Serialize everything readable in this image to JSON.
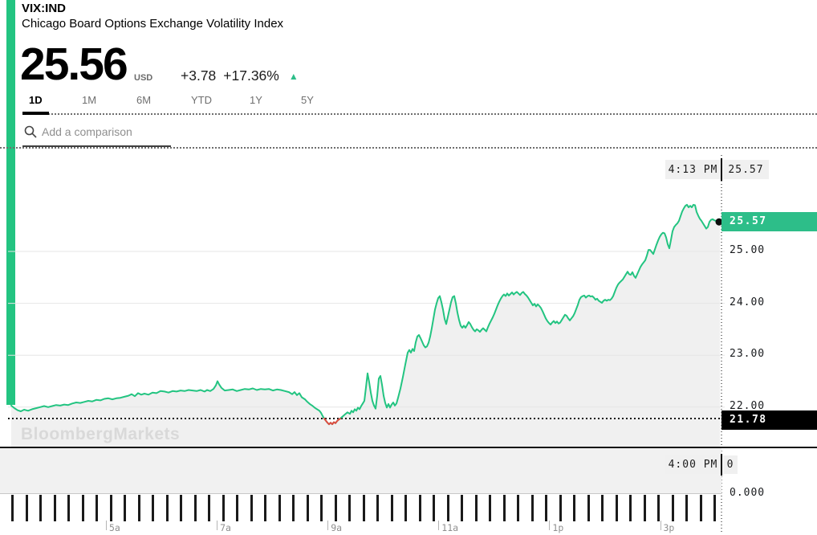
{
  "header": {
    "symbol": "VIX:IND",
    "name": "Chicago Board Options Exchange Volatility Index",
    "price": "25.56",
    "currency": "USD",
    "change_abs": "+3.78",
    "change_pct": "+17.36%",
    "direction_arrow": "▲"
  },
  "tabs": {
    "items": [
      "1D",
      "1M",
      "6M",
      "YTD",
      "1Y",
      "5Y"
    ],
    "active": "1D"
  },
  "comparison": {
    "placeholder": "Add a comparison"
  },
  "icons": {
    "comparison_search": "magnifying-glass"
  },
  "watermark": "BloombergMarkets",
  "colors": {
    "line_green": "#23c481",
    "badge_green": "#2dbe89",
    "below_close_red": "#df4b41",
    "prev_close_badge": "#000000",
    "grid": "#e6e6e6",
    "area_fill": "#f0f0f0"
  },
  "chart_data": {
    "type": "area",
    "title": "VIX:IND 1D intraday price",
    "x_ticks": [
      "5a",
      "7a",
      "9a",
      "11a",
      "1p",
      "3p"
    ],
    "y_ticks": [
      "25.00",
      "24.00",
      "23.00",
      "22.00"
    ],
    "y_tick_values": [
      25,
      24,
      23,
      22
    ],
    "ylim": [
      21.55,
      26.15
    ],
    "volume_axis_label": "0.000",
    "prev_close": 21.78,
    "prev_close_label": "21.78",
    "last_value": 25.57,
    "last_price_label": "25.57",
    "crosshair_top": {
      "time": "4:13 PM",
      "value": "25.57"
    },
    "crosshair_bottom": {
      "time": "4:00 PM",
      "value": "0"
    },
    "time_tick_count": 51,
    "legend": "none",
    "series": [
      [
        14,
        22.03
      ],
      [
        18,
        21.98
      ],
      [
        22,
        21.94
      ],
      [
        26,
        21.92
      ],
      [
        30,
        21.95
      ],
      [
        35,
        21.93
      ],
      [
        40,
        21.96
      ],
      [
        45,
        21.98
      ],
      [
        50,
        22.0
      ],
      [
        55,
        22.02
      ],
      [
        60,
        22.0
      ],
      [
        65,
        22.02
      ],
      [
        70,
        22.04
      ],
      [
        75,
        22.03
      ],
      [
        80,
        22.05
      ],
      [
        85,
        22.04
      ],
      [
        90,
        22.07
      ],
      [
        95,
        22.09
      ],
      [
        100,
        22.08
      ],
      [
        105,
        22.1
      ],
      [
        110,
        22.12
      ],
      [
        115,
        22.11
      ],
      [
        120,
        22.14
      ],
      [
        125,
        22.13
      ],
      [
        130,
        22.16
      ],
      [
        135,
        22.17
      ],
      [
        140,
        22.15
      ],
      [
        145,
        22.17
      ],
      [
        150,
        22.18
      ],
      [
        155,
        22.2
      ],
      [
        160,
        22.22
      ],
      [
        164,
        22.25
      ],
      [
        168,
        22.21
      ],
      [
        172,
        22.27
      ],
      [
        176,
        22.24
      ],
      [
        180,
        22.26
      ],
      [
        185,
        22.24
      ],
      [
        190,
        22.28
      ],
      [
        195,
        22.27
      ],
      [
        200,
        22.31
      ],
      [
        205,
        22.3
      ],
      [
        210,
        22.28
      ],
      [
        215,
        22.31
      ],
      [
        220,
        22.3
      ],
      [
        225,
        22.32
      ],
      [
        230,
        22.31
      ],
      [
        235,
        22.33
      ],
      [
        240,
        22.32
      ],
      [
        245,
        22.31
      ],
      [
        250,
        22.33
      ],
      [
        255,
        22.3
      ],
      [
        258,
        22.33
      ],
      [
        262,
        22.31
      ],
      [
        266,
        22.35
      ],
      [
        269,
        22.42
      ],
      [
        271,
        22.5
      ],
      [
        273,
        22.44
      ],
      [
        276,
        22.37
      ],
      [
        280,
        22.32
      ],
      [
        285,
        22.33
      ],
      [
        290,
        22.34
      ],
      [
        295,
        22.31
      ],
      [
        300,
        22.33
      ],
      [
        305,
        22.35
      ],
      [
        310,
        22.34
      ],
      [
        315,
        22.36
      ],
      [
        320,
        22.33
      ],
      [
        325,
        22.35
      ],
      [
        330,
        22.34
      ],
      [
        335,
        22.35
      ],
      [
        340,
        22.32
      ],
      [
        345,
        22.34
      ],
      [
        350,
        22.33
      ],
      [
        355,
        22.31
      ],
      [
        360,
        22.29
      ],
      [
        364,
        22.25
      ],
      [
        367,
        22.29
      ],
      [
        370,
        22.23
      ],
      [
        373,
        22.27
      ],
      [
        376,
        22.19
      ],
      [
        380,
        22.15
      ],
      [
        383,
        22.1
      ],
      [
        386,
        22.06
      ],
      [
        389,
        22.03
      ],
      [
        392,
        21.99
      ],
      [
        395,
        21.96
      ],
      [
        398,
        21.93
      ],
      [
        400,
        21.89
      ],
      [
        402,
        21.83
      ],
      [
        404,
        21.78
      ],
      [
        406,
        21.74
      ],
      [
        408,
        21.7
      ],
      [
        410,
        21.67
      ],
      [
        412,
        21.7
      ],
      [
        414,
        21.67
      ],
      [
        416,
        21.71
      ],
      [
        418,
        21.69
      ],
      [
        420,
        21.73
      ],
      [
        422,
        21.76
      ],
      [
        424,
        21.78
      ],
      [
        427,
        21.82
      ],
      [
        430,
        21.86
      ],
      [
        433,
        21.9
      ],
      [
        436,
        21.87
      ],
      [
        438,
        21.93
      ],
      [
        440,
        21.9
      ],
      [
        442,
        21.96
      ],
      [
        444,
        21.93
      ],
      [
        446,
        21.99
      ],
      [
        448,
        21.96
      ],
      [
        450,
        22.02
      ],
      [
        452,
        22.07
      ],
      [
        454,
        22.12
      ],
      [
        456,
        22.38
      ],
      [
        458,
        22.65
      ],
      [
        460,
        22.48
      ],
      [
        462,
        22.28
      ],
      [
        464,
        22.12
      ],
      [
        466,
        22.03
      ],
      [
        468,
        21.97
      ],
      [
        470,
        22.22
      ],
      [
        472,
        22.55
      ],
      [
        474,
        22.6
      ],
      [
        476,
        22.43
      ],
      [
        478,
        22.22
      ],
      [
        480,
        22.08
      ],
      [
        482,
        21.99
      ],
      [
        484,
        22.06
      ],
      [
        486,
        21.99
      ],
      [
        488,
        22.05
      ],
      [
        490,
        22.09
      ],
      [
        492,
        22.03
      ],
      [
        494,
        22.07
      ],
      [
        496,
        22.18
      ],
      [
        499,
        22.36
      ],
      [
        502,
        22.58
      ],
      [
        505,
        22.82
      ],
      [
        508,
        23.05
      ],
      [
        510,
        23.1
      ],
      [
        512,
        23.05
      ],
      [
        514,
        23.12
      ],
      [
        516,
        23.08
      ],
      [
        518,
        23.25
      ],
      [
        520,
        23.36
      ],
      [
        522,
        23.39
      ],
      [
        524,
        23.33
      ],
      [
        526,
        23.26
      ],
      [
        528,
        23.19
      ],
      [
        530,
        23.15
      ],
      [
        532,
        23.17
      ],
      [
        534,
        23.24
      ],
      [
        536,
        23.36
      ],
      [
        538,
        23.52
      ],
      [
        540,
        23.7
      ],
      [
        542,
        23.88
      ],
      [
        544,
        24.0
      ],
      [
        546,
        24.1
      ],
      [
        548,
        24.14
      ],
      [
        550,
        24.02
      ],
      [
        552,
        23.88
      ],
      [
        554,
        23.7
      ],
      [
        556,
        23.6
      ],
      [
        558,
        23.74
      ],
      [
        560,
        23.88
      ],
      [
        562,
        24.02
      ],
      [
        564,
        24.12
      ],
      [
        566,
        24.14
      ],
      [
        568,
        24.0
      ],
      [
        570,
        23.82
      ],
      [
        572,
        23.68
      ],
      [
        574,
        23.57
      ],
      [
        576,
        23.53
      ],
      [
        578,
        23.57
      ],
      [
        580,
        23.53
      ],
      [
        582,
        23.58
      ],
      [
        584,
        23.64
      ],
      [
        586,
        23.6
      ],
      [
        588,
        23.54
      ],
      [
        590,
        23.49
      ],
      [
        592,
        23.46
      ],
      [
        594,
        23.5
      ],
      [
        596,
        23.48
      ],
      [
        598,
        23.45
      ],
      [
        600,
        23.49
      ],
      [
        602,
        23.52
      ],
      [
        604,
        23.49
      ],
      [
        606,
        23.46
      ],
      [
        608,
        23.54
      ],
      [
        610,
        23.61
      ],
      [
        612,
        23.67
      ],
      [
        614,
        23.73
      ],
      [
        616,
        23.8
      ],
      [
        618,
        23.88
      ],
      [
        620,
        23.96
      ],
      [
        622,
        24.03
      ],
      [
        624,
        24.09
      ],
      [
        626,
        24.14
      ],
      [
        628,
        24.17
      ],
      [
        630,
        24.14
      ],
      [
        632,
        24.19
      ],
      [
        634,
        24.15
      ],
      [
        636,
        24.18
      ],
      [
        638,
        24.21
      ],
      [
        640,
        24.17
      ],
      [
        642,
        24.2
      ],
      [
        644,
        24.22
      ],
      [
        646,
        24.19
      ],
      [
        648,
        24.16
      ],
      [
        650,
        24.2
      ],
      [
        652,
        24.22
      ],
      [
        654,
        24.18
      ],
      [
        656,
        24.15
      ],
      [
        658,
        24.11
      ],
      [
        660,
        24.06
      ],
      [
        662,
        24.01
      ],
      [
        664,
        23.96
      ],
      [
        666,
        23.99
      ],
      [
        668,
        23.94
      ],
      [
        670,
        23.98
      ],
      [
        672,
        23.95
      ],
      [
        674,
        23.91
      ],
      [
        676,
        23.85
      ],
      [
        678,
        23.78
      ],
      [
        680,
        23.71
      ],
      [
        682,
        23.66
      ],
      [
        684,
        23.62
      ],
      [
        686,
        23.59
      ],
      [
        688,
        23.63
      ],
      [
        690,
        23.66
      ],
      [
        692,
        23.62
      ],
      [
        694,
        23.65
      ],
      [
        696,
        23.61
      ],
      [
        698,
        23.63
      ],
      [
        700,
        23.68
      ],
      [
        702,
        23.73
      ],
      [
        704,
        23.78
      ],
      [
        706,
        23.76
      ],
      [
        708,
        23.71
      ],
      [
        710,
        23.67
      ],
      [
        712,
        23.71
      ],
      [
        714,
        23.75
      ],
      [
        716,
        23.81
      ],
      [
        718,
        23.89
      ],
      [
        720,
        23.97
      ],
      [
        722,
        24.07
      ],
      [
        724,
        24.12
      ],
      [
        726,
        24.14
      ],
      [
        728,
        24.15
      ],
      [
        730,
        24.11
      ],
      [
        732,
        24.14
      ],
      [
        734,
        24.15
      ],
      [
        736,
        24.13
      ],
      [
        738,
        24.14
      ],
      [
        740,
        24.11
      ],
      [
        742,
        24.07
      ],
      [
        744,
        24.09
      ],
      [
        746,
        24.05
      ],
      [
        748,
        24.03
      ],
      [
        750,
        24.01
      ],
      [
        752,
        24.05
      ],
      [
        754,
        24.07
      ],
      [
        756,
        24.05
      ],
      [
        758,
        24.07
      ],
      [
        760,
        24.06
      ],
      [
        762,
        24.09
      ],
      [
        764,
        24.14
      ],
      [
        766,
        24.22
      ],
      [
        768,
        24.3
      ],
      [
        770,
        24.36
      ],
      [
        772,
        24.4
      ],
      [
        774,
        24.43
      ],
      [
        776,
        24.46
      ],
      [
        778,
        24.51
      ],
      [
        780,
        24.56
      ],
      [
        782,
        24.61
      ],
      [
        784,
        24.56
      ],
      [
        786,
        24.55
      ],
      [
        788,
        24.6
      ],
      [
        790,
        24.53
      ],
      [
        792,
        24.49
      ],
      [
        794,
        24.56
      ],
      [
        796,
        24.63
      ],
      [
        798,
        24.7
      ],
      [
        800,
        24.75
      ],
      [
        802,
        24.79
      ],
      [
        804,
        24.83
      ],
      [
        806,
        24.92
      ],
      [
        808,
        25.03
      ],
      [
        810,
        25.03
      ],
      [
        812,
        24.99
      ],
      [
        814,
        24.95
      ],
      [
        816,
        25.04
      ],
      [
        818,
        25.13
      ],
      [
        820,
        25.21
      ],
      [
        822,
        25.28
      ],
      [
        824,
        25.33
      ],
      [
        826,
        25.36
      ],
      [
        828,
        25.35
      ],
      [
        830,
        25.27
      ],
      [
        832,
        25.14
      ],
      [
        834,
        25.06
      ],
      [
        836,
        25.22
      ],
      [
        838,
        25.39
      ],
      [
        840,
        25.47
      ],
      [
        842,
        25.51
      ],
      [
        844,
        25.54
      ],
      [
        846,
        25.59
      ],
      [
        848,
        25.68
      ],
      [
        850,
        25.77
      ],
      [
        852,
        25.83
      ],
      [
        854,
        25.88
      ],
      [
        856,
        25.9
      ],
      [
        858,
        25.85
      ],
      [
        860,
        25.88
      ],
      [
        862,
        25.85
      ],
      [
        864,
        25.9
      ],
      [
        866,
        25.89
      ],
      [
        868,
        25.76
      ],
      [
        870,
        25.69
      ],
      [
        872,
        25.63
      ],
      [
        874,
        25.59
      ],
      [
        876,
        25.54
      ],
      [
        878,
        25.49
      ],
      [
        880,
        25.44
      ],
      [
        882,
        25.47
      ],
      [
        884,
        25.57
      ],
      [
        886,
        25.61
      ],
      [
        888,
        25.62
      ],
      [
        890,
        25.6
      ],
      [
        892,
        25.59
      ],
      [
        894,
        25.58
      ],
      [
        897,
        25.57
      ]
    ]
  }
}
